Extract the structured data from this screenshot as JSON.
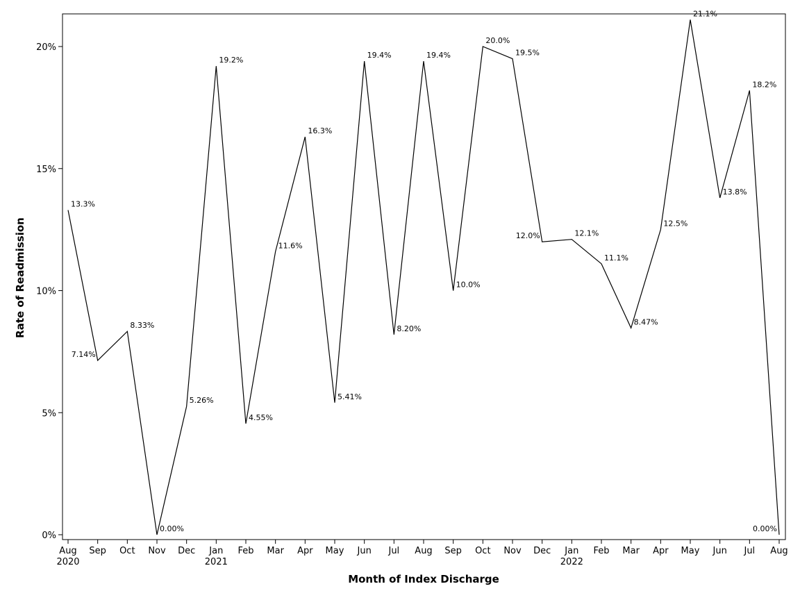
{
  "chart_data": {
    "type": "line",
    "title": "",
    "xlabel": "Month of Index Discharge",
    "ylabel": "Rate of Readmission",
    "ylim": [
      0,
      21.5
    ],
    "grid": false,
    "y_ticks": [
      0,
      5,
      10,
      15,
      20
    ],
    "y_tick_labels": [
      "0%",
      "5%",
      "10%",
      "15%",
      "20%"
    ],
    "x": [
      "2020-08",
      "2020-09",
      "2020-10",
      "2020-11",
      "2020-12",
      "2021-01",
      "2021-02",
      "2021-03",
      "2021-04",
      "2021-05",
      "2021-06",
      "2021-07",
      "2021-08",
      "2021-09",
      "2021-10",
      "2021-11",
      "2021-12",
      "2022-01",
      "2022-02",
      "2022-03",
      "2022-04",
      "2022-05",
      "2022-06",
      "2022-07",
      "2022-08"
    ],
    "x_tick_labels": [
      "Aug",
      "Sep",
      "Oct",
      "Nov",
      "Dec",
      "Jan",
      "Feb",
      "Mar",
      "Apr",
      "May",
      "Jun",
      "Jul",
      "Aug",
      "Sep",
      "Oct",
      "Nov",
      "Dec",
      "Jan",
      "Feb",
      "Mar",
      "Apr",
      "May",
      "Jun",
      "Jul",
      "Aug"
    ],
    "year_labels": [
      {
        "index": 0,
        "text": "2020"
      },
      {
        "index": 5,
        "text": "2021"
      },
      {
        "index": 17,
        "text": "2022"
      }
    ],
    "series": [
      {
        "values": [
          13.3,
          7.14,
          8.33,
          0.0,
          5.26,
          19.2,
          4.55,
          11.6,
          16.3,
          5.41,
          19.4,
          8.2,
          19.4,
          10.0,
          20.0,
          19.5,
          12.0,
          12.1,
          11.1,
          8.47,
          12.5,
          21.1,
          13.8,
          18.2,
          0.0
        ],
        "labels": [
          "13.3%",
          "7.14%",
          "8.33%",
          "0.00%",
          "5.26%",
          "19.2%",
          "4.55%",
          "11.6%",
          "16.3%",
          "5.41%",
          "19.4%",
          "8.20%",
          "19.4%",
          "10.0%",
          "20.0%",
          "19.5%",
          "12.0%",
          "12.1%",
          "11.1%",
          "8.47%",
          "12.5%",
          "21.1%",
          "13.8%",
          "18.2%",
          "0.00%"
        ]
      }
    ],
    "colors": {
      "line": "#000000",
      "axis": "#000000"
    }
  }
}
